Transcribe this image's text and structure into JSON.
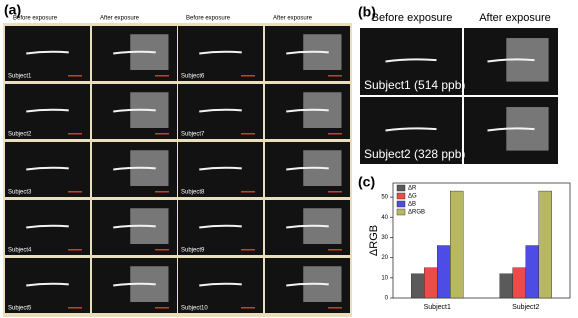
{
  "panel_a": {
    "label": "(a)",
    "headers": [
      "Before exposure",
      "After exposure",
      "Before exposure",
      "After exposure"
    ],
    "subjects": [
      "Subject1",
      "Subject2",
      "Subject3",
      "Subject4",
      "Subject5",
      "Subject6",
      "Subject7",
      "Subject8",
      "Subject9",
      "Subject10"
    ]
  },
  "panel_b": {
    "label": "(b)",
    "headers": [
      "Before exposure",
      "After exposure"
    ],
    "subjects": [
      "Subject1 (514 ppb)",
      "Subject2 (328 ppb)"
    ]
  },
  "chart_data": {
    "label": "(c)",
    "type": "bar",
    "y_label": "ΔRGB",
    "categories": [
      "Subject1",
      "Subject2"
    ],
    "series": [
      {
        "name": "ΔR",
        "color": "#5a5a5a",
        "values": [
          12,
          12
        ]
      },
      {
        "name": "ΔG",
        "color": "#ec4b4b",
        "values": [
          15,
          15
        ]
      },
      {
        "name": "ΔB",
        "color": "#4d4de6",
        "values": [
          26,
          26
        ]
      },
      {
        "name": "ΔRGB",
        "color": "#b8b863",
        "values": [
          53,
          53
        ]
      }
    ],
    "ylim": [
      0,
      57
    ],
    "yticks": [
      0,
      10,
      20,
      30,
      40,
      50
    ]
  }
}
